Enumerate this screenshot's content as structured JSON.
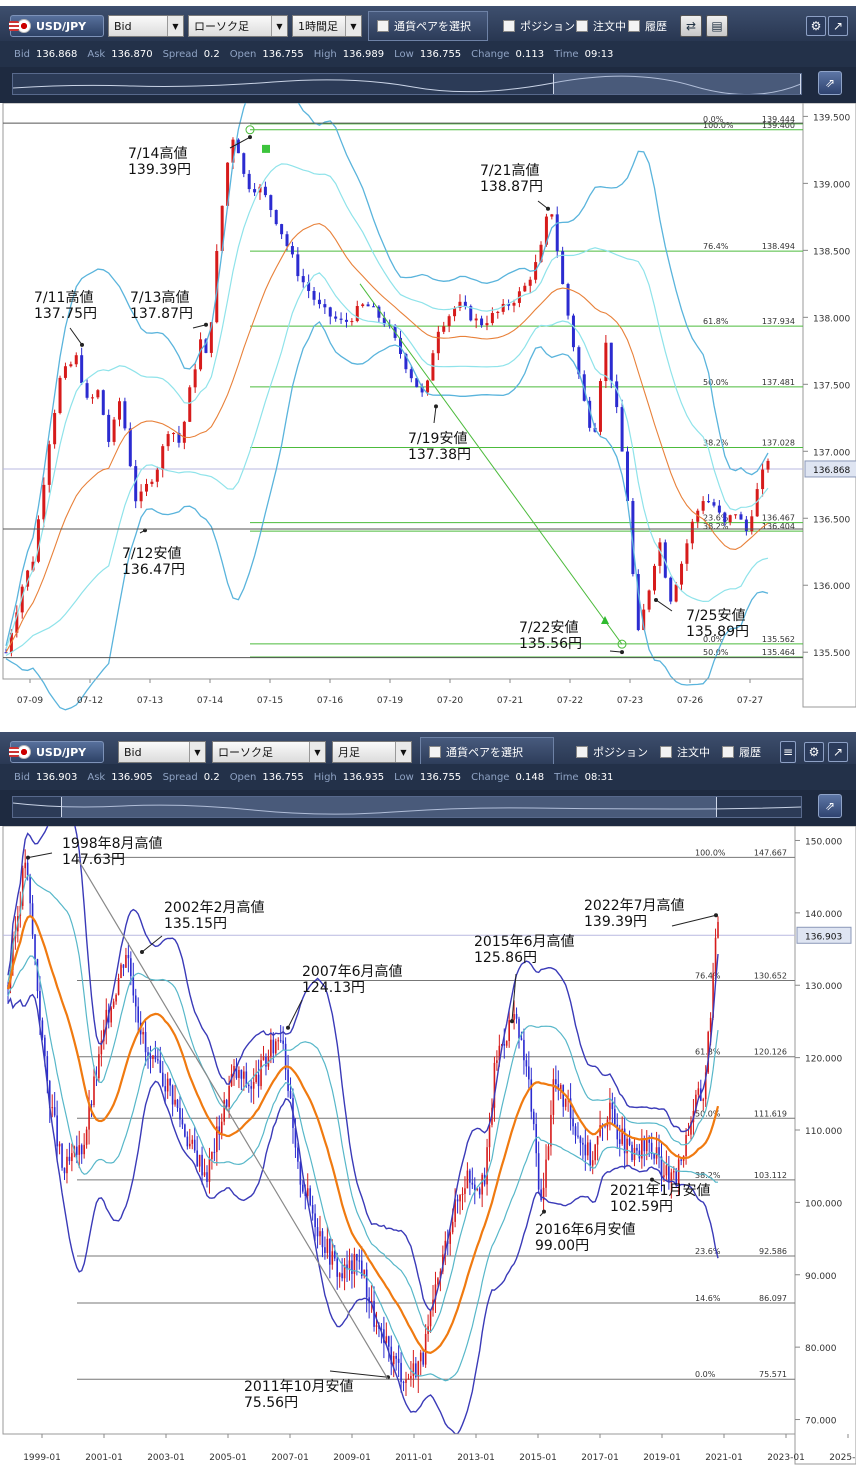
{
  "top_panel": {
    "toolbar": {
      "pair": "USD/JPY",
      "price_type": "Bid",
      "chart_type": "ローソク足",
      "timeframe": "1時間足",
      "select_pair": "通貨ペアを選択",
      "position_label": "ポジション",
      "order_label": "注文中",
      "history_label": "履歴"
    },
    "info": {
      "bid_label": "Bid",
      "bid": "136.868",
      "ask_label": "Ask",
      "ask": "136.870",
      "spread_label": "Spread",
      "spread": "0.2",
      "open_label": "Open",
      "open": "136.755",
      "high_label": "High",
      "high": "136.989",
      "low_label": "Low",
      "low": "136.755",
      "change_label": "Change",
      "change": "0.113",
      "time_label": "Time",
      "time": "09:13"
    }
  },
  "bottom_panel": {
    "toolbar": {
      "pair": "USD/JPY",
      "price_type": "Bid",
      "chart_type": "ローソク足",
      "timeframe": "月足",
      "select_pair": "通貨ペアを選択",
      "position_label": "ポジション",
      "order_label": "注文中",
      "history_label": "履歴"
    },
    "info": {
      "bid_label": "Bid",
      "bid": "136.903",
      "ask_label": "Ask",
      "ask": "136.905",
      "spread_label": "Spread",
      "spread": "0.2",
      "open_label": "Open",
      "open": "136.755",
      "high_label": "High",
      "high": "136.935",
      "low_label": "Low",
      "low": "136.755",
      "change_label": "Change",
      "change": "0.148",
      "time_label": "Time",
      "time": "08:31"
    }
  },
  "colors": {
    "candle_up": "#d61b1b",
    "candle_down": "#2b2bd0",
    "bb_outer": "#5ab4dc",
    "bb_inner": "#8fe3ea",
    "ma": "#e8813a",
    "fib": "#4cbb3c",
    "monthly_bb": "#3a3ab8",
    "monthly_ma": "#f07a10",
    "monthly_bb_inner": "#57b7c9"
  },
  "chart_data": [
    {
      "type": "candlestick",
      "timeframe": "1時間足",
      "ylim": [
        135.3,
        139.6
      ],
      "yticks": [
        "139.500",
        "139.000",
        "138.500",
        "138.000",
        "137.500",
        "137.000",
        "136.500",
        "136.000",
        "135.500"
      ],
      "current_price": "136.868",
      "xticks": [
        "07-09",
        "07-12",
        "07-13",
        "07-14",
        "07-15",
        "07-16",
        "07-19",
        "07-20",
        "07-21",
        "07-22",
        "07-23",
        "07-26",
        "07-27"
      ],
      "price_path": [
        [
          0,
          135.5
        ],
        [
          3,
          136.0
        ],
        [
          5,
          136.2
        ],
        [
          8,
          137.1
        ],
        [
          10,
          137.55
        ],
        [
          13,
          137.7
        ],
        [
          15,
          137.35
        ],
        [
          17,
          137.45
        ],
        [
          19,
          137.05
        ],
        [
          21,
          137.4
        ],
        [
          24,
          136.6
        ],
        [
          26,
          136.75
        ],
        [
          28,
          136.9
        ],
        [
          30,
          137.2
        ],
        [
          32,
          137.05
        ],
        [
          34,
          137.5
        ],
        [
          36,
          137.87
        ],
        [
          37,
          137.65
        ],
        [
          39,
          138.6
        ],
        [
          41,
          139.25
        ],
        [
          42,
          139.39
        ],
        [
          44,
          139.0
        ],
        [
          47,
          138.95
        ],
        [
          50,
          138.7
        ],
        [
          54,
          138.3
        ],
        [
          58,
          138.05
        ],
        [
          62,
          137.95
        ],
        [
          66,
          138.1
        ],
        [
          70,
          137.95
        ],
        [
          74,
          137.6
        ],
        [
          77,
          137.38
        ],
        [
          79,
          137.9
        ],
        [
          83,
          138.1
        ],
        [
          87,
          137.95
        ],
        [
          91,
          138.05
        ],
        [
          95,
          138.2
        ],
        [
          98,
          138.45
        ],
        [
          100,
          138.87
        ],
        [
          102,
          138.3
        ],
        [
          104,
          137.85
        ],
        [
          106,
          137.4
        ],
        [
          108,
          137.1
        ],
        [
          110,
          137.85
        ],
        [
          112,
          137.35
        ],
        [
          114,
          136.75
        ],
        [
          116,
          135.6
        ],
        [
          118,
          135.95
        ],
        [
          120,
          136.35
        ],
        [
          122,
          135.89
        ],
        [
          124,
          136.15
        ],
        [
          126,
          136.45
        ],
        [
          128,
          136.65
        ],
        [
          130,
          136.6
        ],
        [
          132,
          136.45
        ],
        [
          134,
          136.55
        ],
        [
          136,
          136.4
        ],
        [
          138,
          136.7
        ],
        [
          140,
          136.95
        ]
      ],
      "fibonacci": [
        {
          "level": "0.0%",
          "value": "139.444"
        },
        {
          "level": "100.0%",
          "value": "139.400"
        },
        {
          "level": "76.4%",
          "value": "138.494"
        },
        {
          "level": "61.8%",
          "value": "137.934"
        },
        {
          "level": "50.0%",
          "value": "137.481"
        },
        {
          "level": "38.2%",
          "value": "137.028"
        },
        {
          "level": "23.6%",
          "value": "136.467"
        },
        {
          "level": "38.2%",
          "value": "136.404"
        },
        {
          "level": "0.0%",
          "value": "135.562"
        },
        {
          "level": "50.0%",
          "value": "135.464"
        }
      ],
      "annotations": [
        {
          "date": "7/14高値",
          "price": "139.39円",
          "y": 139.39
        },
        {
          "date": "7/21高値",
          "price": "138.87円",
          "y": 138.87
        },
        {
          "date": "7/11高値",
          "price": "137.75円",
          "y": 137.75
        },
        {
          "date": "7/13高値",
          "price": "137.87円",
          "y": 137.87
        },
        {
          "date": "7/19安値",
          "price": "137.38円",
          "y": 137.38
        },
        {
          "date": "7/12安値",
          "price": "136.47円",
          "y": 136.47
        },
        {
          "date": "7/22安値",
          "price": "135.56円",
          "y": 135.56
        },
        {
          "date": "7/25安値",
          "price": "135.89円",
          "y": 135.89
        }
      ]
    },
    {
      "type": "candlestick",
      "timeframe": "月足",
      "ylim": [
        68,
        152
      ],
      "yticks": [
        "150.000",
        "140.000",
        "130.000",
        "120.000",
        "110.000",
        "100.000",
        "90.000",
        "80.000",
        "70.000"
      ],
      "current_price": "136.903",
      "xticks": [
        "1999-01",
        "2001-01",
        "2003-01",
        "2005-01",
        "2007-01",
        "2009-01",
        "2011-01",
        "2013-01",
        "2015-01",
        "2017-01",
        "2019-01",
        "2021-01",
        "2023-01",
        "2025-01"
      ],
      "price_path": [
        [
          1998.0,
          130
        ],
        [
          1998.6,
          147.63
        ],
        [
          1999.3,
          118
        ],
        [
          1999.9,
          104
        ],
        [
          2000.6,
          108
        ],
        [
          2001.4,
          125
        ],
        [
          2002.1,
          135.15
        ],
        [
          2002.8,
          120
        ],
        [
          2003.6,
          116
        ],
        [
          2004.3,
          108
        ],
        [
          2004.9,
          104
        ],
        [
          2005.8,
          118
        ],
        [
          2006.5,
          116
        ],
        [
          2007.5,
          124.13
        ],
        [
          2008.0,
          105
        ],
        [
          2008.8,
          96
        ],
        [
          2009.5,
          90
        ],
        [
          2010.2,
          92
        ],
        [
          2010.8,
          82
        ],
        [
          2011.8,
          75.56
        ],
        [
          2012.4,
          79
        ],
        [
          2013.3,
          97
        ],
        [
          2013.9,
          104
        ],
        [
          2014.5,
          102
        ],
        [
          2014.9,
          120
        ],
        [
          2015.5,
          125.86
        ],
        [
          2016.0,
          118
        ],
        [
          2016.5,
          99.0
        ],
        [
          2016.9,
          117
        ],
        [
          2017.5,
          112
        ],
        [
          2018.2,
          106
        ],
        [
          2018.8,
          113
        ],
        [
          2019.6,
          106
        ],
        [
          2020.2,
          108
        ],
        [
          2020.8,
          104
        ],
        [
          2021.1,
          102.59
        ],
        [
          2021.8,
          114
        ],
        [
          2022.1,
          115
        ],
        [
          2022.6,
          139.39
        ]
      ],
      "fibonacci": [
        {
          "level": "100.0%",
          "value": "147.667"
        },
        {
          "level": "76.4%",
          "value": "130.652"
        },
        {
          "level": "61.8%",
          "value": "120.126"
        },
        {
          "level": "50.0%",
          "value": "111.619"
        },
        {
          "level": "38.2%",
          "value": "103.112"
        },
        {
          "level": "23.6%",
          "value": "92.586"
        },
        {
          "level": "14.6%",
          "value": "86.097"
        },
        {
          "level": "0.0%",
          "value": "75.571"
        }
      ],
      "annotations": [
        {
          "date": "1998年8月高値",
          "price": "147.63円",
          "y": 147.63
        },
        {
          "date": "2002年2月高値",
          "price": "135.15円",
          "y": 135.15
        },
        {
          "date": "2007年6月高値",
          "price": "124.13円",
          "y": 124.13
        },
        {
          "date": "2015年6月高値",
          "price": "125.86円",
          "y": 125.86
        },
        {
          "date": "2022年7月高値",
          "price": "139.39円",
          "y": 139.39
        },
        {
          "date": "2021年1月安値",
          "price": "102.59円",
          "y": 102.59
        },
        {
          "date": "2016年6月安値",
          "price": "99.00円",
          "y": 99.0
        },
        {
          "date": "2011年10月安値",
          "price": "75.56円",
          "y": 75.56
        }
      ]
    }
  ]
}
